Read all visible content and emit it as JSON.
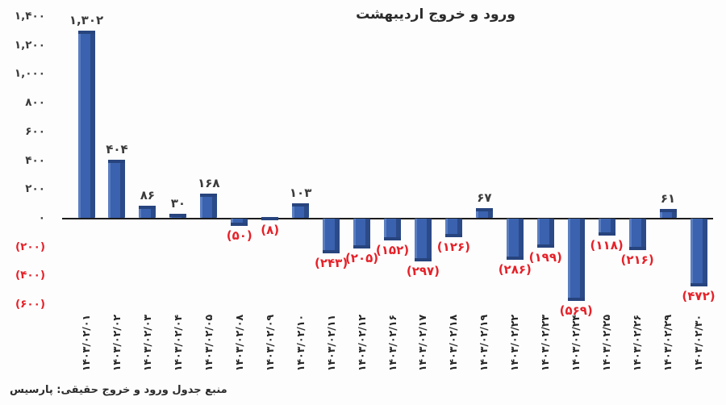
{
  "chart_data": {
    "type": "bar",
    "title": "ورود و خروج اردیبهشت",
    "source": "منبع جدول ورود و خروج حقیقی: پارسیس",
    "xlabel": "",
    "ylabel": "",
    "ylim": [
      -600,
      1400
    ],
    "ytick_step": 200,
    "grid": false,
    "legend": "none",
    "bar_color": "#3a62ae",
    "bar_color_dark": "#2b4a88",
    "bar_color_light": "#5b7ec2",
    "bar_cap_color": "#27447e",
    "positive_label_color": "#3b3b3b",
    "negative_label_color": "#e62129",
    "axis_color": "#1c1c1c",
    "yticks": [
      {
        "value": 1400,
        "label": "۱,۴۰۰"
      },
      {
        "value": 1200,
        "label": "۱,۲۰۰"
      },
      {
        "value": 1000,
        "label": "۱,۰۰۰"
      },
      {
        "value": 800,
        "label": "۸۰۰"
      },
      {
        "value": 600,
        "label": "۶۰۰"
      },
      {
        "value": 400,
        "label": "۴۰۰"
      },
      {
        "value": 200,
        "label": "۲۰۰"
      },
      {
        "value": 0,
        "label": "۰"
      },
      {
        "value": -200,
        "label": "(۲۰۰)"
      },
      {
        "value": -400,
        "label": "(۴۰۰)"
      },
      {
        "value": -600,
        "label": "(۶۰۰)"
      }
    ],
    "categories": [
      "۱۴۰۳/۰۲/۰۱",
      "۱۴۰۳/۰۲/۰۲",
      "۱۴۰۳/۰۲/۰۳",
      "۱۴۰۳/۰۲/۰۴",
      "۱۴۰۳/۰۲/۰۵",
      "۱۴۰۳/۰۲/۰۸",
      "۱۴۰۳/۰۲/۰۹",
      "۱۴۰۳/۰۲/۱۰",
      "۱۴۰۳/۰۲/۱۱",
      "۱۴۰۳/۰۲/۱۲",
      "۱۴۰۳/۰۲/۱۶",
      "۱۴۰۳/۰۲/۱۷",
      "۱۴۰۳/۰۲/۱۸",
      "۱۴۰۳/۰۲/۱۹",
      "۱۴۰۳/۰۲/۲۲",
      "۱۴۰۳/۰۲/۲۳",
      "۱۴۰۳/۰۲/۲۴",
      "۱۴۰۳/۰۲/۲۵",
      "۱۴۰۳/۰۲/۲۶",
      "۱۴۰۳/۰۲/۲۹",
      "۱۴۰۳/۰۲/۳۰"
    ],
    "values": [
      1302,
      404,
      86,
      30,
      168,
      -50,
      -8,
      103,
      -243,
      -205,
      -152,
      -297,
      -126,
      67,
      -286,
      -199,
      -569,
      -118,
      -216,
      61,
      -472
    ],
    "value_labels": [
      "۱,۳۰۲",
      "۴۰۴",
      "۸۶",
      "۳۰",
      "۱۶۸",
      "(۵۰)",
      "(۸)",
      "۱۰۳",
      "(۲۴۳)",
      "(۲۰۵)",
      "(۱۵۲)",
      "(۲۹۷)",
      "(۱۲۶)",
      "۶۷",
      "(۲۸۶)",
      "(۱۹۹)",
      "(۵۶۹)",
      "(۱۱۸)",
      "(۲۱۶)",
      "۶۱",
      "(۴۷۲)"
    ]
  }
}
